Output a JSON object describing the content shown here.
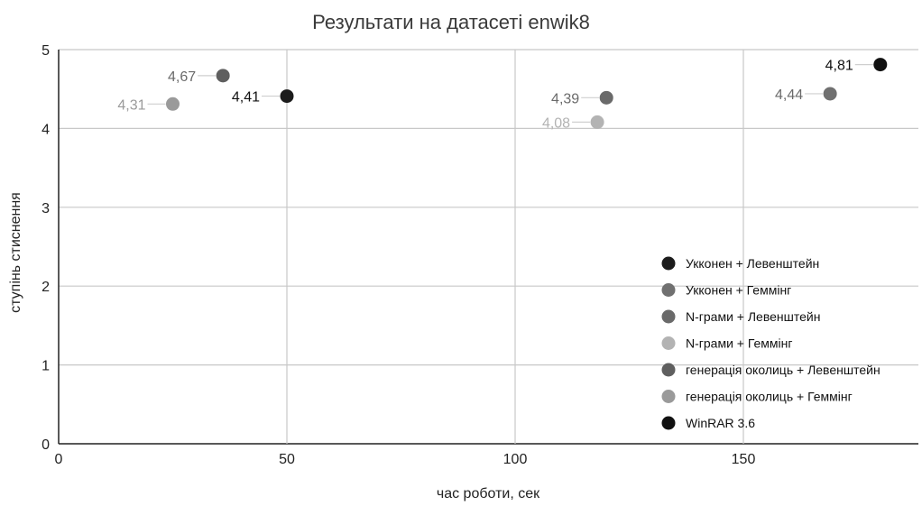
{
  "chart_data": {
    "type": "scatter",
    "title": "Результати на датасеті enwik8",
    "xlabel": "час роботи, сек",
    "ylabel": "ступінь стиснення",
    "xlim": [
      0,
      190
    ],
    "ylim": [
      0,
      5
    ],
    "x_ticks": [
      0,
      50,
      100,
      150
    ],
    "y_ticks": [
      0,
      1,
      2,
      3,
      4,
      5
    ],
    "grid": true,
    "legend_position": "bottom-right",
    "series": [
      {
        "name": "Укконен + Левенштейн",
        "color": "#1c1c1c",
        "points": [
          {
            "x": 50,
            "y": 4.41,
            "label": "4,41"
          }
        ]
      },
      {
        "name": "Укконен + Геммінг",
        "color": "#707070",
        "points": [
          {
            "x": 169,
            "y": 4.44,
            "label": "4,44"
          }
        ]
      },
      {
        "name": "N-грами + Левенштейн",
        "color": "#6a6a6a",
        "points": [
          {
            "x": 120,
            "y": 4.39,
            "label": "4,39"
          }
        ]
      },
      {
        "name": "N-грами + Геммінг",
        "color": "#b3b3b3",
        "points": [
          {
            "x": 118,
            "y": 4.08,
            "label": "4,08"
          }
        ]
      },
      {
        "name": "генерація околиць + Левенштейн",
        "color": "#5f5f5f",
        "points": [
          {
            "x": 36,
            "y": 4.67,
            "label": "4,67"
          }
        ]
      },
      {
        "name": "генерація околиць + Геммінг",
        "color": "#9a9a9a",
        "points": [
          {
            "x": 25,
            "y": 4.31,
            "label": "4,31"
          }
        ]
      },
      {
        "name": "WinRAR 3.6",
        "color": "#111111",
        "points": [
          {
            "x": 180,
            "y": 4.81,
            "label": "4,81"
          }
        ]
      }
    ]
  }
}
